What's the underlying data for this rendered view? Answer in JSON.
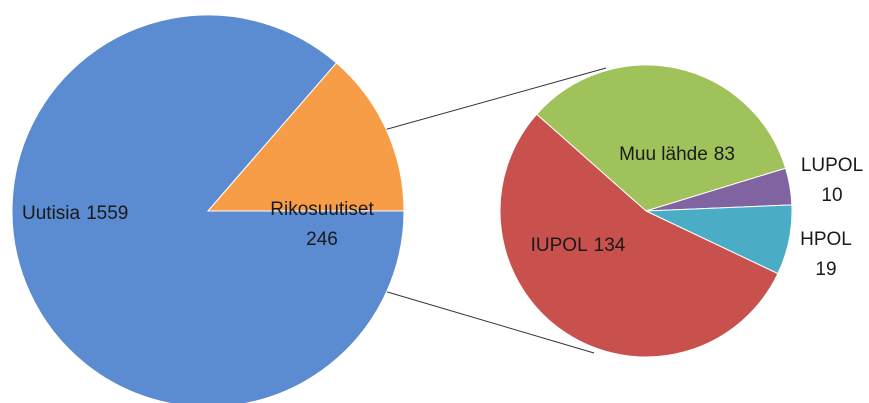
{
  "chart_data": {
    "type": "pie",
    "categories": [
      "Uutisia",
      "Rikosuutiset"
    ],
    "values": [
      1559,
      246
    ],
    "colors": [
      "#5b8bd0",
      "#f89d47"
    ],
    "detail": {
      "categories": [
        "Muu lähde",
        "LUPOL",
        "HPOL",
        "IUPOL"
      ],
      "values": [
        83,
        10,
        19,
        134
      ],
      "colors": [
        "#9fc25a",
        "#8064a2",
        "#4bacc6",
        "#c8514d"
      ]
    }
  }
}
